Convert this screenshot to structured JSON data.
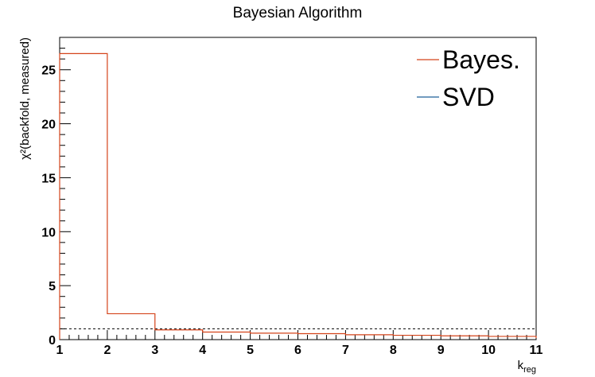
{
  "chart_data": {
    "type": "line",
    "step": true,
    "title": "Bayesian Algorithm",
    "xlabel": "k",
    "xlabel_sub": "reg",
    "ylabel": "χ²(backfold, measured)",
    "xlim": [
      1,
      11
    ],
    "ylim": [
      0,
      28
    ],
    "x_ticks": [
      "1",
      "2",
      "3",
      "4",
      "5",
      "6",
      "7",
      "8",
      "9",
      "10",
      "11"
    ],
    "y_ticks": [
      "0",
      "5",
      "10",
      "15",
      "20",
      "25"
    ],
    "reference_line": {
      "y": 1,
      "style": "dashed"
    },
    "legend_position": "top-right",
    "series": [
      {
        "name": "Bayes.",
        "color": "#d4431a",
        "bins": [
          1,
          2,
          3,
          4,
          5,
          6,
          7,
          8,
          9,
          10,
          11
        ],
        "values": [
          26.5,
          2.4,
          0.9,
          0.7,
          0.6,
          0.55,
          0.45,
          0.4,
          0.35,
          0.3,
          0.15
        ]
      },
      {
        "name": "SVD",
        "color": "#1f5f99",
        "bins": [],
        "values": []
      }
    ]
  }
}
